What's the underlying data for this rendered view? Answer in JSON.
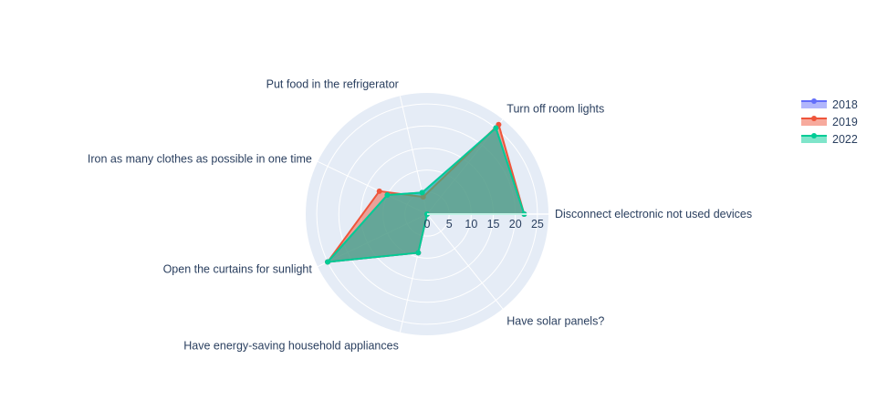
{
  "chart_data": {
    "type": "radar",
    "title": "",
    "categories": [
      "Disconnect electronic not used devices",
      "Turn off room lights",
      "Put food in the refrigerator",
      "Iron as many clothes as possible in one time",
      "Open the curtains for sunlight",
      "Have energy-saving household appliances",
      "Have solar panels?"
    ],
    "radial_ticks": [
      "0",
      "5",
      "10",
      "15",
      "20",
      "25"
    ],
    "radial_range": [
      0,
      27.5
    ],
    "series": [
      {
        "name": "2018",
        "color": "#636efa",
        "values": [
          22,
          25,
          5,
          10,
          25,
          9,
          0
        ]
      },
      {
        "name": "2019",
        "color": "#ef553b",
        "values": [
          22,
          26,
          4,
          12,
          25,
          9,
          0
        ]
      },
      {
        "name": "2022",
        "color": "#00cc96",
        "values": [
          22,
          25,
          5,
          10,
          25,
          9,
          0
        ]
      }
    ],
    "legend": {
      "position": "top-right",
      "entries": [
        "2018",
        "2019",
        "2022"
      ]
    },
    "grid": true,
    "polar_background": "#e5ecf6"
  }
}
